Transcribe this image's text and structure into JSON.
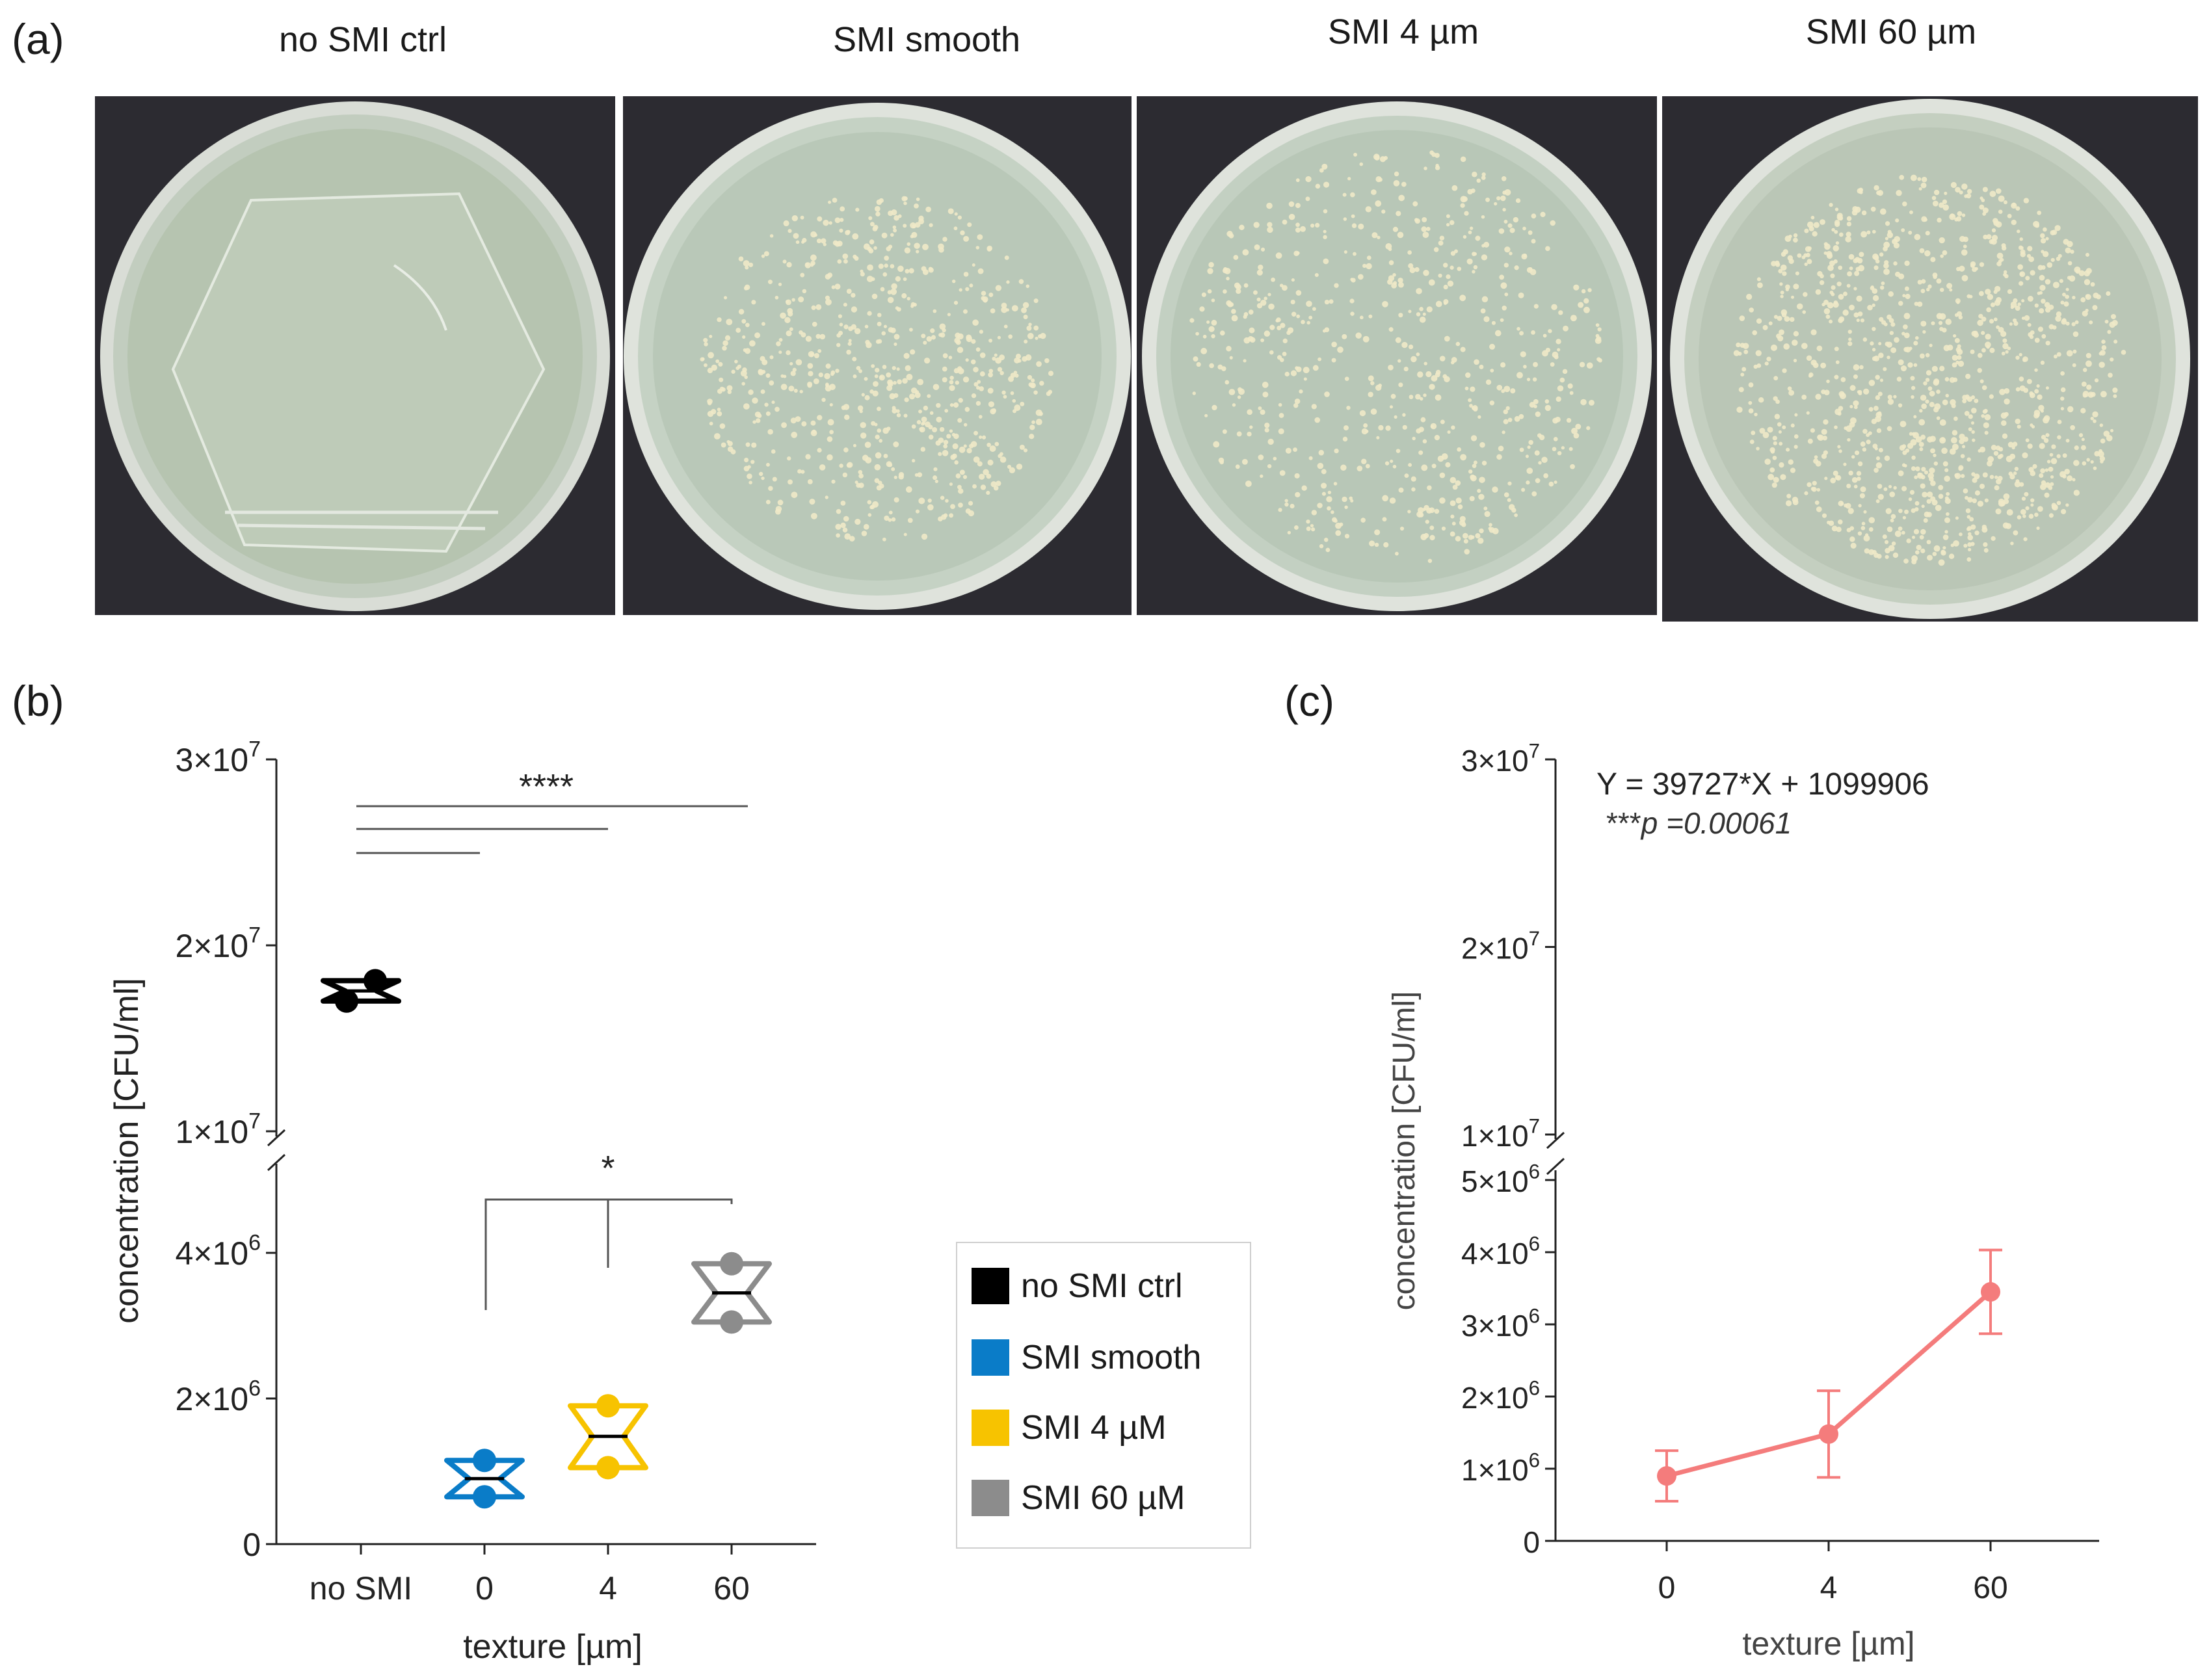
{
  "panels": {
    "a": "(a)",
    "b": "(b)",
    "c": "(c)"
  },
  "plates": [
    {
      "title": "no SMI ctrl",
      "colonies": "none"
    },
    {
      "title": "SMI smooth",
      "colonies": "dense"
    },
    {
      "title": "SMI 4 µm",
      "colonies": "dense"
    },
    {
      "title": "SMI 60 µm",
      "colonies": "very dense"
    }
  ],
  "legend": [
    {
      "label": "no SMI ctrl",
      "color": "#000000"
    },
    {
      "label": "SMI smooth",
      "color": "#0a7cc8"
    },
    {
      "label": "SMI 4 µM",
      "color": "#f7c300"
    },
    {
      "label": "SMI 60 µM",
      "color": "#8c8c8c"
    }
  ],
  "chart_data": [
    {
      "panel": "b",
      "type": "scatter",
      "subtype": "violin-with-points",
      "xlabel": "texture [µm]",
      "ylabel": "concentration [CFU/ml]",
      "categories": [
        "no SMI",
        "0",
        "4",
        "60"
      ],
      "y_axis_break": true,
      "y_ticks_lower": [
        "0",
        "2×10⁶",
        "4×10⁶"
      ],
      "y_ticks_upper": [
        "1×10⁷",
        "2×10⁷",
        "3×10⁷"
      ],
      "ylim_lower": [
        0,
        5000000
      ],
      "ylim_upper": [
        10000000,
        30000000
      ],
      "series": [
        {
          "category": "no SMI",
          "color": "#000000",
          "points": [
            17000000,
            18100000
          ],
          "median": 17550000
        },
        {
          "category": "0",
          "color": "#0a7cc8",
          "points": [
            650000,
            1150000
          ],
          "median": 900000
        },
        {
          "category": "4",
          "color": "#f7c300",
          "points": [
            1050000,
            1900000
          ],
          "median": 1480000
        },
        {
          "category": "60",
          "color": "#8c8c8c",
          "points": [
            3050000,
            3850000
          ],
          "median": 3450000
        }
      ],
      "significance": [
        {
          "label": "****",
          "brackets": [
            [
              "no SMI",
              "0"
            ],
            [
              "no SMI",
              "4"
            ],
            [
              "no SMI",
              "60"
            ]
          ]
        },
        {
          "label": "*",
          "brackets": [
            [
              "0",
              "60"
            ],
            [
              "4",
              "60"
            ]
          ]
        }
      ]
    },
    {
      "panel": "c",
      "type": "line",
      "xlabel": "texture [µm]",
      "ylabel": "concentration [CFU/ml]",
      "categories": [
        "0",
        "4",
        "60"
      ],
      "y_axis_break": true,
      "y_ticks_lower": [
        "0",
        "1×10⁶",
        "2×10⁶",
        "3×10⁶",
        "4×10⁶",
        "5×10⁶"
      ],
      "y_ticks_upper": [
        "1×10⁷",
        "2×10⁷",
        "3×10⁷"
      ],
      "ylim_lower": [
        0,
        5000000
      ],
      "ylim_upper": [
        10000000,
        30000000
      ],
      "series": [
        {
          "color": "#f47c7c",
          "values": [
            900000,
            1480000,
            3450000
          ],
          "errors": [
            350000,
            600000,
            580000
          ]
        }
      ],
      "annotation": {
        "equation": "Y = 39727*X + 1099906",
        "stars": "***",
        "p_text": "p =0.00061"
      }
    }
  ]
}
